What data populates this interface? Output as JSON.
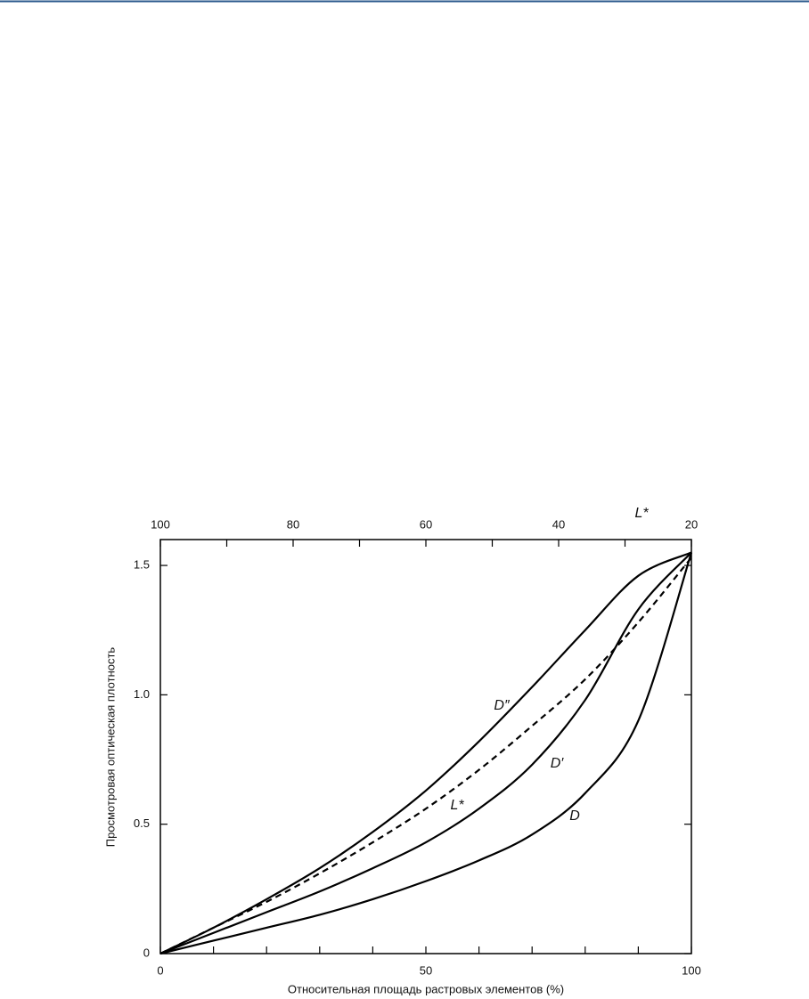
{
  "chart_data": {
    "type": "line",
    "xlabel": "Относительная площадь растровых элементов (%)",
    "ylabel": "Просмотровая оптическая плотность",
    "x2label": "L*",
    "xlim": [
      0,
      100
    ],
    "xticks": [
      0,
      50,
      100
    ],
    "xminor_ticks": [
      10,
      20,
      30,
      40,
      60,
      70,
      80,
      90
    ],
    "x2lim": [
      100,
      20
    ],
    "x2ticks": [
      100,
      80,
      60,
      40,
      20
    ],
    "x2minor_ticks": [
      90,
      70,
      50,
      30
    ],
    "ylim": [
      0,
      1.6
    ],
    "yticks": [
      0,
      0.5,
      {
        "value": 1,
        "label": "1.0"
      },
      1.5
    ],
    "x": [
      0,
      10,
      20,
      30,
      40,
      50,
      60,
      70,
      80,
      90,
      100
    ],
    "series": [
      {
        "name": "D″",
        "color": "#000000",
        "dashed": false,
        "values": [
          0,
          0.1,
          0.21,
          0.33,
          0.47,
          0.63,
          0.82,
          1.03,
          1.25,
          1.46,
          1.55
        ]
      },
      {
        "name": "L*",
        "color": "#000000",
        "dashed": true,
        "values": [
          0,
          0.1,
          0.2,
          0.31,
          0.43,
          0.56,
          0.71,
          0.88,
          1.06,
          1.28,
          1.53
        ]
      },
      {
        "name": "D′",
        "color": "#000000",
        "dashed": false,
        "values": [
          0,
          0.08,
          0.16,
          0.24,
          0.33,
          0.43,
          0.56,
          0.73,
          0.98,
          1.33,
          1.55
        ]
      },
      {
        "name": "D",
        "color": "#000000",
        "dashed": false,
        "values": [
          0,
          0.05,
          0.1,
          0.15,
          0.21,
          0.28,
          0.36,
          0.46,
          0.62,
          0.9,
          1.55
        ]
      }
    ]
  }
}
